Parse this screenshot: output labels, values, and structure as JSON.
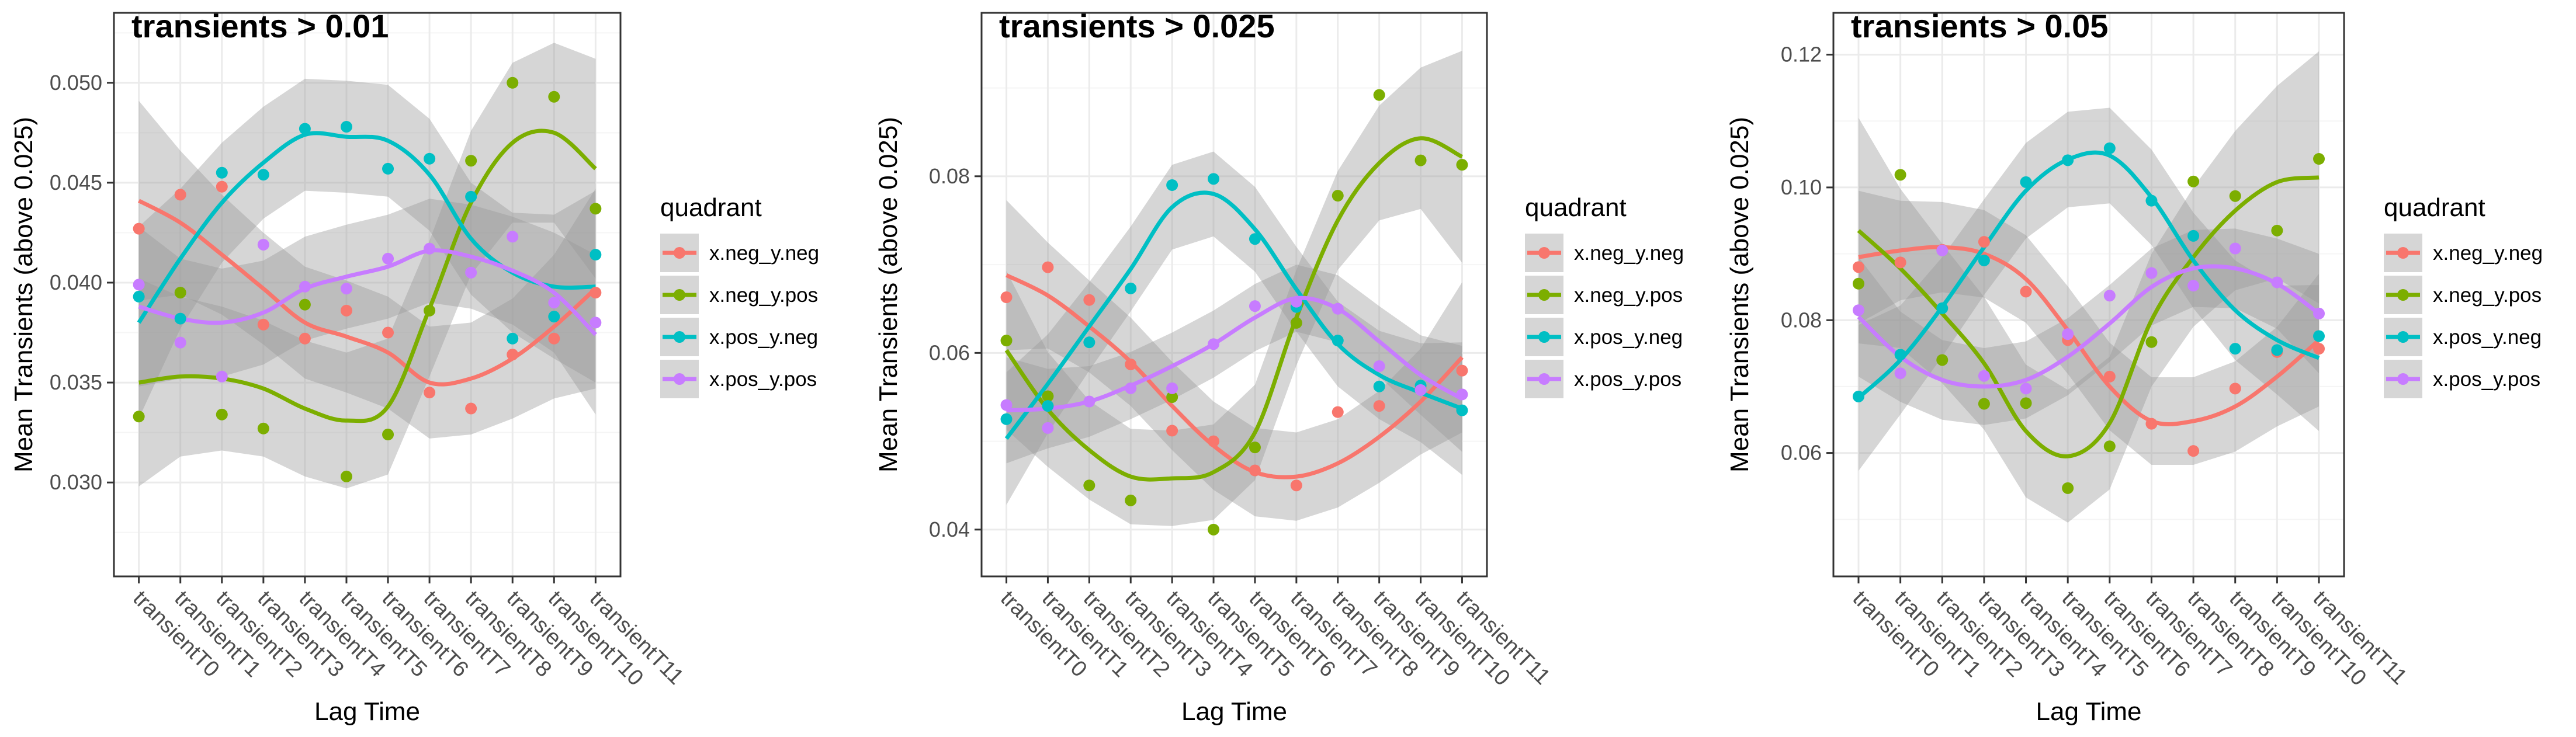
{
  "colors": {
    "x.neg_y.neg": "#F8766D",
    "x.neg_y.pos": "#7CAE00",
    "x.pos_y.neg": "#00BFC4",
    "x.pos_y.pos": "#C77CFF",
    "ribbon": "#999999",
    "grid_major": "#ebebeb",
    "grid_minor": "#f5f5f5",
    "panel_border": "#333333"
  },
  "legend": {
    "title": "quadrant",
    "entries": [
      "x.neg_y.neg",
      "x.neg_y.pos",
      "x.pos_y.neg",
      "x.pos_y.pos"
    ]
  },
  "chart_data": [
    {
      "type": "scatter",
      "title": "transients > 0.01",
      "xlabel": "Lag Time",
      "ylabel": "Mean Transients (above 0.025)",
      "categories": [
        "transientT0",
        "transientT1",
        "transientT2",
        "transientT3",
        "transientT4",
        "transientT5",
        "transientT6",
        "transientT7",
        "transientT8",
        "transientT9",
        "transientT10",
        "transientT11"
      ],
      "ylim": [
        0.0253,
        0.0535
      ],
      "yticks": [
        0.03,
        0.035,
        0.04,
        0.045,
        0.05
      ],
      "ytick_labels": [
        "0.030",
        "0.035",
        "0.040",
        "0.045",
        "0.050"
      ],
      "grid": true,
      "legend_position": "right",
      "smoother": "loess with confidence band",
      "series": [
        {
          "name": "x.neg_y.neg",
          "points": [
            0.0427,
            0.0444,
            0.0448,
            0.0379,
            0.0372,
            0.0386,
            0.0375,
            0.0345,
            0.0337,
            0.0364,
            0.0372,
            0.0395
          ],
          "fit": [
            0.0441,
            0.043,
            0.0414,
            0.0397,
            0.038,
            0.0373,
            0.0365,
            0.035,
            0.0352,
            0.0362,
            0.0378,
            0.0397
          ],
          "band": [
            0.005,
            0.0036,
            0.003,
            0.0028,
            0.0028,
            0.0028,
            0.0028,
            0.0028,
            0.0028,
            0.003,
            0.0036,
            0.005
          ]
        },
        {
          "name": "x.neg_y.pos",
          "points": [
            0.0333,
            0.0395,
            0.0334,
            0.0327,
            0.0389,
            0.0303,
            0.0324,
            0.0386,
            0.0461,
            0.05,
            0.0493,
            0.0437
          ],
          "fit": [
            0.035,
            0.0353,
            0.0352,
            0.0347,
            0.0337,
            0.0331,
            0.0338,
            0.0387,
            0.044,
            0.047,
            0.0475,
            0.0457
          ],
          "band": [
            0.0052,
            0.004,
            0.0036,
            0.0034,
            0.0034,
            0.0034,
            0.0034,
            0.0034,
            0.0036,
            0.004,
            0.0045,
            0.0055
          ]
        },
        {
          "name": "x.pos_y.neg",
          "points": [
            0.0393,
            0.0382,
            0.0455,
            0.0454,
            0.0477,
            0.0478,
            0.0457,
            0.0462,
            0.0443,
            0.0372,
            0.0383,
            0.0414
          ],
          "fit": [
            0.038,
            0.0412,
            0.044,
            0.046,
            0.0474,
            0.0473,
            0.0471,
            0.0454,
            0.0422,
            0.0405,
            0.0398,
            0.0398
          ],
          "band": [
            0.0048,
            0.0035,
            0.003,
            0.0028,
            0.0028,
            0.0028,
            0.0028,
            0.0028,
            0.0028,
            0.003,
            0.0036,
            0.0048
          ]
        },
        {
          "name": "x.pos_y.pos",
          "points": [
            0.0399,
            0.037,
            0.0353,
            0.0419,
            0.0398,
            0.0397,
            0.0412,
            0.0417,
            0.0405,
            0.0423,
            0.039,
            0.038
          ],
          "fit": [
            0.0388,
            0.0382,
            0.038,
            0.0385,
            0.0397,
            0.0403,
            0.0408,
            0.0416,
            0.0413,
            0.0406,
            0.0395,
            0.0374
          ],
          "band": [
            0.004,
            0.003,
            0.0027,
            0.0026,
            0.0026,
            0.0026,
            0.0026,
            0.0026,
            0.0026,
            0.0027,
            0.003,
            0.004
          ]
        }
      ]
    },
    {
      "type": "scatter",
      "title": "transients > 0.025",
      "xlabel": "Lag Time",
      "ylabel": "Mean Transients (above 0.025)",
      "categories": [
        "transientT0",
        "transientT1",
        "transientT2",
        "transientT3",
        "transientT4",
        "transientT5",
        "transientT6",
        "transientT7",
        "transientT8",
        "transientT9",
        "transientT10",
        "transientT11"
      ],
      "ylim": [
        0.0347,
        0.0985
      ],
      "yticks": [
        0.04,
        0.06,
        0.08
      ],
      "ytick_labels": [
        "0.04",
        "0.06",
        "0.08"
      ],
      "grid": true,
      "legend_position": "right",
      "smoother": "loess with confidence band",
      "series": [
        {
          "name": "x.neg_y.neg",
          "points": [
            0.0663,
            0.0697,
            0.066,
            0.0587,
            0.0512,
            0.05,
            0.0467,
            0.045,
            0.0533,
            0.054,
            0.056,
            0.058
          ],
          "fit": [
            0.0688,
            0.0665,
            0.063,
            0.059,
            0.054,
            0.0495,
            0.0465,
            0.046,
            0.0475,
            0.0505,
            0.0545,
            0.0595
          ],
          "band": [
            0.0085,
            0.006,
            0.0052,
            0.005,
            0.005,
            0.005,
            0.005,
            0.005,
            0.005,
            0.0052,
            0.006,
            0.0085
          ]
        },
        {
          "name": "x.neg_y.pos",
          "points": [
            0.0614,
            0.0551,
            0.045,
            0.0433,
            0.055,
            0.04,
            0.0493,
            0.0634,
            0.0778,
            0.0892,
            0.0818,
            0.0813
          ],
          "fit": [
            0.0603,
            0.0536,
            0.049,
            0.046,
            0.0458,
            0.0465,
            0.051,
            0.064,
            0.075,
            0.0815,
            0.0843,
            0.0822
          ],
          "band": [
            0.009,
            0.0065,
            0.0056,
            0.0054,
            0.0054,
            0.0054,
            0.0054,
            0.0054,
            0.0056,
            0.0065,
            0.008,
            0.012
          ]
        },
        {
          "name": "x.pos_y.neg",
          "points": [
            0.0525,
            0.054,
            0.0612,
            0.0673,
            0.079,
            0.0797,
            0.0729,
            0.0652,
            0.0614,
            0.0562,
            0.0563,
            0.0535
          ],
          "fit": [
            0.0503,
            0.0565,
            0.063,
            0.0695,
            0.0765,
            0.078,
            0.074,
            0.0672,
            0.061,
            0.0575,
            0.0555,
            0.0537
          ],
          "band": [
            0.0075,
            0.0056,
            0.005,
            0.0048,
            0.0048,
            0.0048,
            0.0048,
            0.0048,
            0.0048,
            0.005,
            0.0056,
            0.0075
          ]
        },
        {
          "name": "x.pos_y.pos",
          "points": [
            0.0541,
            0.0515,
            0.0545,
            0.056,
            0.056,
            0.061,
            0.0653,
            0.0658,
            0.065,
            0.0585,
            0.0558,
            0.0553
          ],
          "fit": [
            0.0535,
            0.0537,
            0.0545,
            0.0563,
            0.0585,
            0.061,
            0.064,
            0.0662,
            0.065,
            0.0613,
            0.0575,
            0.0548
          ],
          "band": [
            0.006,
            0.0045,
            0.004,
            0.0038,
            0.0038,
            0.0038,
            0.0038,
            0.0038,
            0.0038,
            0.004,
            0.0045,
            0.006
          ]
        }
      ]
    },
    {
      "type": "scatter",
      "title": "transients > 0.05",
      "xlabel": "Lag Time",
      "ylabel": "Mean Transients (above 0.025)",
      "categories": [
        "transientT0",
        "transientT1",
        "transientT2",
        "transientT3",
        "transientT4",
        "transientT5",
        "transientT6",
        "transientT7",
        "transientT8",
        "transientT9",
        "transientT10",
        "transientT11"
      ],
      "ylim": [
        0.0414,
        0.1263
      ],
      "yticks": [
        0.06,
        0.08,
        0.1,
        0.12
      ],
      "ytick_labels": [
        "0.06",
        "0.08",
        "0.10",
        "0.12"
      ],
      "grid": true,
      "legend_position": "right",
      "smoother": "loess with confidence band",
      "series": [
        {
          "name": "x.neg_y.neg",
          "points": [
            0.088,
            0.0887,
            0.0906,
            0.0918,
            0.0843,
            0.077,
            0.0715,
            0.0644,
            0.0603,
            0.0697,
            0.0752,
            0.0757
          ],
          "fit": [
            0.0895,
            0.0905,
            0.091,
            0.09,
            0.0862,
            0.0785,
            0.07,
            0.0648,
            0.0648,
            0.067,
            0.0715,
            0.077
          ],
          "band": [
            0.01,
            0.0075,
            0.0068,
            0.0066,
            0.0066,
            0.0066,
            0.0066,
            0.0066,
            0.0066,
            0.0068,
            0.0075,
            0.01
          ]
        },
        {
          "name": "x.neg_y.pos",
          "points": [
            0.0855,
            0.1019,
            0.074,
            0.0674,
            0.0675,
            0.0547,
            0.061,
            0.0767,
            0.1009,
            0.0987,
            0.0935,
            0.1043
          ],
          "fit": [
            0.0935,
            0.0878,
            0.081,
            0.0735,
            0.0633,
            0.0595,
            0.0645,
            0.08,
            0.0895,
            0.0965,
            0.1008,
            0.1015
          ],
          "band": [
            0.017,
            0.012,
            0.0105,
            0.01,
            0.01,
            0.01,
            0.01,
            0.01,
            0.0105,
            0.012,
            0.0145,
            0.019
          ]
        },
        {
          "name": "x.pos_y.neg",
          "points": [
            0.0685,
            0.0748,
            0.0818,
            0.089,
            0.1008,
            0.1041,
            0.1059,
            0.098,
            0.0927,
            0.0757,
            0.0755,
            0.0776
          ],
          "fit": [
            0.0683,
            0.074,
            0.082,
            0.091,
            0.0995,
            0.1042,
            0.1048,
            0.0985,
            0.089,
            0.0815,
            0.077,
            0.0743
          ],
          "band": [
            0.011,
            0.0082,
            0.0075,
            0.0072,
            0.0072,
            0.0072,
            0.0072,
            0.0072,
            0.0072,
            0.0075,
            0.0082,
            0.011
          ]
        },
        {
          "name": "x.pos_y.pos",
          "points": [
            0.0815,
            0.072,
            0.0905,
            0.0716,
            0.0697,
            0.0779,
            0.0837,
            0.0871,
            0.0852,
            0.0908,
            0.0857,
            0.081
          ],
          "fit": [
            0.0805,
            0.0745,
            0.071,
            0.07,
            0.071,
            0.0745,
            0.0795,
            0.085,
            0.0878,
            0.0878,
            0.0855,
            0.081
          ],
          "band": [
            0.009,
            0.0068,
            0.006,
            0.0058,
            0.0058,
            0.0058,
            0.0058,
            0.0058,
            0.0058,
            0.006,
            0.0068,
            0.009
          ]
        }
      ]
    }
  ]
}
